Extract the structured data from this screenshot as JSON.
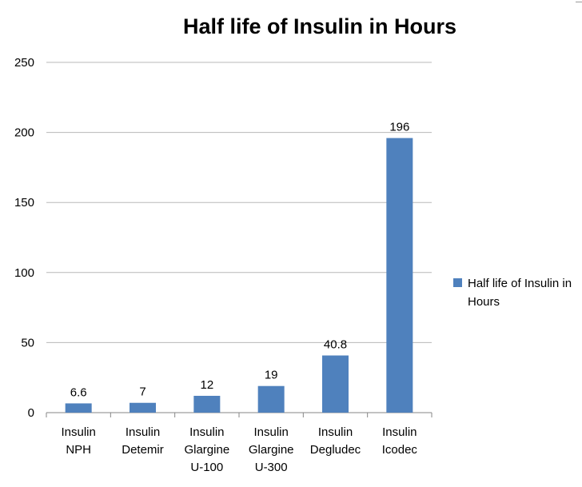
{
  "chart_data": {
    "type": "bar",
    "title": "Half life of Insulin in Hours",
    "categories": [
      [
        "Insulin",
        "NPH"
      ],
      [
        "Insulin",
        "Detemir"
      ],
      [
        "Insulin",
        "Glargine",
        "U-100"
      ],
      [
        "Insulin",
        "Glargine",
        "U-300"
      ],
      [
        "Insulin",
        "Degludec"
      ],
      [
        "Insulin",
        "Icodec"
      ]
    ],
    "series": [
      {
        "name": "Half life of Insulin in Hours",
        "values": [
          6.6,
          7,
          12,
          19,
          40.8,
          196
        ],
        "color": "#4f81bd"
      }
    ],
    "data_labels": [
      "6.6",
      "7",
      "12",
      "19",
      "40.8",
      "196"
    ],
    "yticks": [
      0,
      50,
      100,
      150,
      200,
      250
    ],
    "ylim": [
      0,
      250
    ],
    "grid": true,
    "legend_position": "right",
    "xlabel": "",
    "ylabel": ""
  }
}
